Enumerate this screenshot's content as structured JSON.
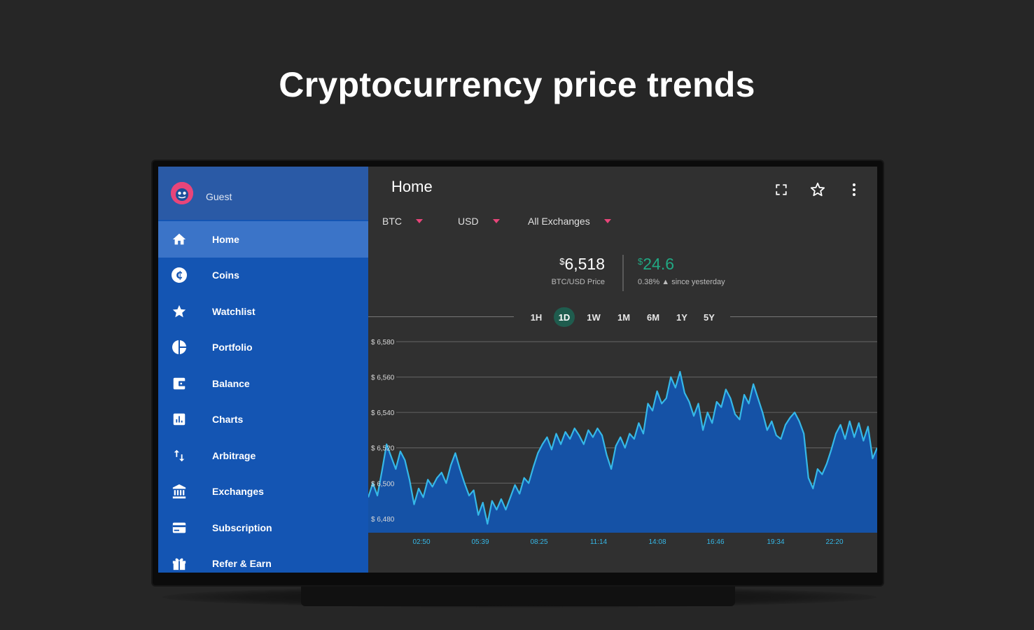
{
  "headline": "Cryptocurrency price trends",
  "sidebar": {
    "user_name": "Guest",
    "items": [
      {
        "label": "Home",
        "icon": "home-icon",
        "active": true
      },
      {
        "label": "Coins",
        "icon": "coin-icon",
        "active": false
      },
      {
        "label": "Watchlist",
        "icon": "star-icon",
        "active": false
      },
      {
        "label": "Portfolio",
        "icon": "pie-chart-icon",
        "active": false
      },
      {
        "label": "Balance",
        "icon": "wallet-icon",
        "active": false
      },
      {
        "label": "Charts",
        "icon": "chart-icon",
        "active": false
      },
      {
        "label": "Arbitrage",
        "icon": "swap-arrows-icon",
        "active": false
      },
      {
        "label": "Exchanges",
        "icon": "bank-icon",
        "active": false
      },
      {
        "label": "Subscription",
        "icon": "credit-card-icon",
        "active": false
      },
      {
        "label": "Refer & Earn",
        "icon": "gift-icon",
        "active": false
      }
    ]
  },
  "header": {
    "title": "Home",
    "icons": [
      "fullscreen-icon",
      "star-outline-icon",
      "more-vert-icon"
    ]
  },
  "selectors": {
    "coin": "BTC",
    "fiat": "USD",
    "exchange": "All Exchanges"
  },
  "price": {
    "currency_symbol": "$",
    "value": "6,518",
    "label": "BTC/USD Price",
    "change_symbol": "$",
    "change": "24.6",
    "change_label": "0.38% ▲ since yesterday"
  },
  "ranges": [
    {
      "label": "1H",
      "active": false
    },
    {
      "label": "1D",
      "active": true
    },
    {
      "label": "1W",
      "active": false
    },
    {
      "label": "1M",
      "active": false
    },
    {
      "label": "6M",
      "active": false
    },
    {
      "label": "1Y",
      "active": false
    },
    {
      "label": "5Y",
      "active": false
    }
  ],
  "colors": {
    "sidebar": "#1455b3",
    "accent_pink": "#e8457a",
    "positive_green": "#21a883",
    "chart_line": "#35b8e8",
    "chart_fill": "#1552a6"
  },
  "chart_data": {
    "type": "area",
    "y_tick_labels": [
      "$ 6,580",
      "$ 6,560",
      "$ 6,540",
      "$ 6,520",
      "$ 6,500",
      "$ 6,480"
    ],
    "y_ticks": [
      6580,
      6560,
      6540,
      6520,
      6500,
      6480
    ],
    "ylim": [
      6472,
      6584
    ],
    "x_tick_labels": [
      "02:50",
      "05:39",
      "08:25",
      "11:14",
      "14:08",
      "16:46",
      "19:34",
      "22:20"
    ],
    "grid": true,
    "values": [
      6492,
      6500,
      6493,
      6507,
      6522,
      6515,
      6508,
      6518,
      6513,
      6502,
      6488,
      6497,
      6492,
      6502,
      6498,
      6503,
      6506,
      6500,
      6510,
      6517,
      6508,
      6500,
      6493,
      6496,
      6482,
      6489,
      6477,
      6490,
      6485,
      6491,
      6485,
      6492,
      6499,
      6494,
      6503,
      6500,
      6509,
      6517,
      6522,
      6526,
      6519,
      6528,
      6522,
      6529,
      6525,
      6531,
      6527,
      6522,
      6530,
      6526,
      6531,
      6527,
      6516,
      6508,
      6521,
      6526,
      6520,
      6528,
      6525,
      6534,
      6528,
      6545,
      6541,
      6552,
      6545,
      6548,
      6560,
      6554,
      6563,
      6551,
      6546,
      6538,
      6545,
      6530,
      6540,
      6534,
      6546,
      6543,
      6553,
      6548,
      6539,
      6536,
      6550,
      6545,
      6556,
      6548,
      6540,
      6530,
      6535,
      6527,
      6525,
      6533,
      6537,
      6540,
      6535,
      6528,
      6503,
      6497,
      6508,
      6505,
      6511,
      6519,
      6528,
      6533,
      6525,
      6535,
      6526,
      6534,
      6524,
      6532,
      6514,
      6520
    ]
  }
}
